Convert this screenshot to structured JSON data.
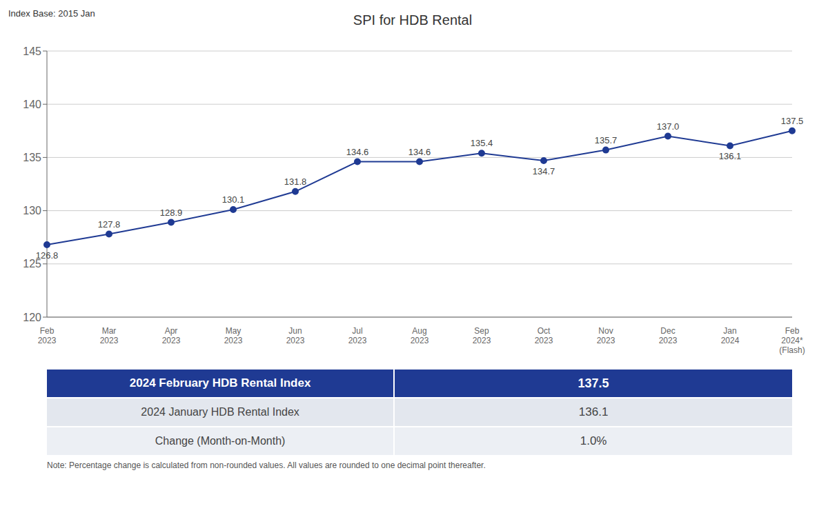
{
  "chart_data": {
    "type": "line",
    "title": "SPI for HDB Rental",
    "categories": [
      "Feb\n2023",
      "Mar\n2023",
      "Apr\n2023",
      "May\n2023",
      "Jun\n2023",
      "Jul\n2023",
      "Aug\n2023",
      "Sep\n2023",
      "Oct\n2023",
      "Nov\n2023",
      "Dec\n2023",
      "Jan\n2024",
      "Feb\n2024*\n(Flash)"
    ],
    "values": [
      126.8,
      127.8,
      128.9,
      130.1,
      131.8,
      134.6,
      134.6,
      135.4,
      134.7,
      135.7,
      137.0,
      136.1,
      137.5
    ],
    "value_labels": [
      "126.8",
      "127.8",
      "128.9",
      "130.1",
      "131.8",
      "134.6",
      "134.6",
      "135.4",
      "134.7",
      "135.7",
      "137.0",
      "136.1",
      "137.5"
    ],
    "data_labels": true,
    "color": "#1F3A93",
    "marker": "circle",
    "ylim": [
      120,
      145
    ],
    "yticks": [
      120,
      125,
      130,
      135,
      140,
      145
    ],
    "grid": true,
    "annotations": {
      "index_base": "Index Base: 2015 Jan",
      "note": "Note: Percentage change is calculated from non-rounded values.  All values are rounded to one decimal point thereafter."
    },
    "table": [
      {
        "label": "2024 February HDB Rental Index",
        "value": "137.5"
      },
      {
        "label": "2024 January HDB Rental Index",
        "value": "136.1"
      },
      {
        "label": "Change (Month-on-Month)",
        "value": "1.0%"
      }
    ]
  }
}
